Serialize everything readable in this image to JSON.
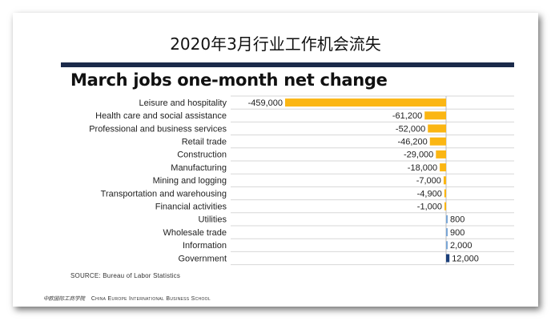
{
  "slide_title": "2020年3月行业工作机会流失",
  "chart_data": {
    "type": "bar",
    "orientation": "horizontal",
    "title": "March jobs one-month net change",
    "categories": [
      "Leisure and hospitality",
      "Health care and social assistance",
      "Professional and business services",
      "Retail trade",
      "Construction",
      "Manufacturing",
      "Mining and logging",
      "Transportation and warehousing",
      "Financial activities",
      "Utilities",
      "Wholesale trade",
      "Information",
      "Government"
    ],
    "values": [
      -459000,
      -61200,
      -52000,
      -46200,
      -29000,
      -18000,
      -7000,
      -4900,
      -1000,
      800,
      900,
      2000,
      12000
    ],
    "value_labels": [
      "-459,000",
      "-61,200",
      "-52,000",
      "-46,200",
      "-29,000",
      "-18,000",
      "-7,000",
      "-4,900",
      "-1,000",
      "800",
      "900",
      "2,000",
      "12,000"
    ],
    "colors": {
      "negative": "#fbb613",
      "positive_small": "#7aa6d6",
      "positive_large": "#1b3f7a",
      "gridline": "#d7d7d7",
      "zero_line": "#bdbdbd"
    },
    "grid": true,
    "legend": "none"
  },
  "source": "SOURCE: Bureau of Labor Statistics",
  "footer": {
    "school_cn": "中欧国际工商学院",
    "school_en": "China Europe International Business School"
  }
}
